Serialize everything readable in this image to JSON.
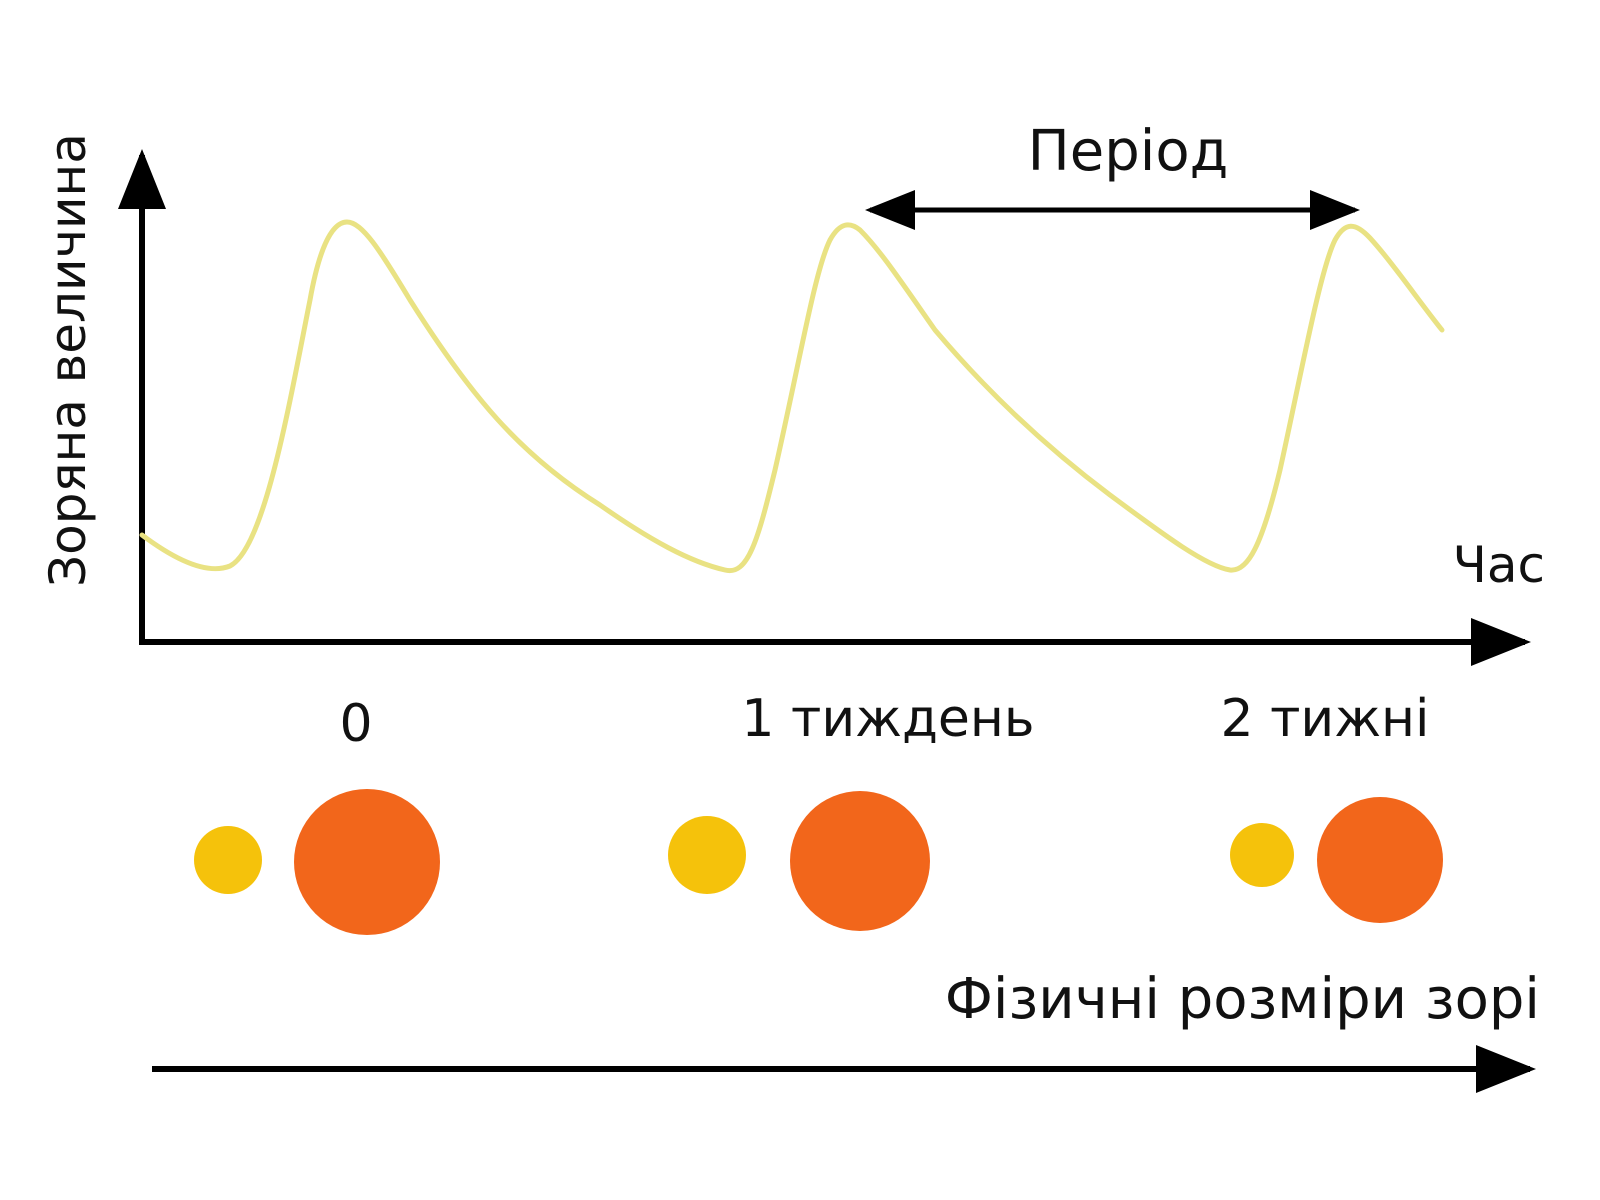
{
  "diagram": {
    "y_axis_label": "Зоряна величина",
    "x_axis_label": "Час",
    "period_label": "Період",
    "size_axis_label": "Фізичні розміри зорі",
    "time_labels": [
      "0",
      "1 тиждень",
      "2 тижні"
    ],
    "curve_color": "#e9e283",
    "axis_color": "#000000",
    "small_star_color": "#f5c20b",
    "large_star_color": "#f2661b"
  }
}
